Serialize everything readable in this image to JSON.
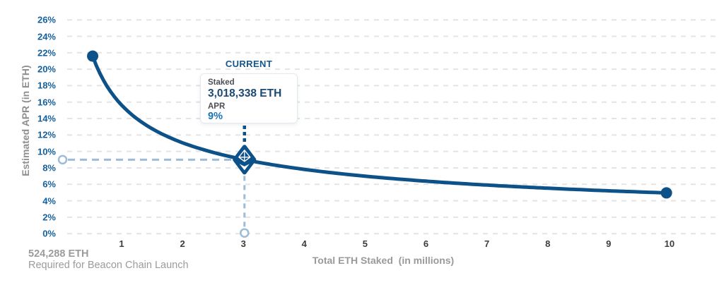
{
  "colors": {
    "curve": "#0d5189",
    "y_tick_label": "#15609c",
    "x_tick_label": "#3c3c3c",
    "axis_title_gray": "#8f8f8f",
    "guide_light_blue": "#9cbcd8",
    "tooltip_value_navy": "#1b4971",
    "tooltip_apr_blue": "#1673b5",
    "note_gray": "#9b9b9b",
    "gridline": "#e4e4e4"
  },
  "chart_data": {
    "type": "line",
    "xlabel": "Total ETH Staked  (in millions)",
    "ylabel": "Estimated APR (in ETH)",
    "xlim": [
      0,
      10.9
    ],
    "ylim": [
      0,
      26
    ],
    "x_ticks": [
      1,
      2,
      3,
      4,
      5,
      6,
      7,
      8,
      9,
      10
    ],
    "y_tick_step": 2,
    "y_tick_suffix": "%",
    "grid": "horizontal-dashed",
    "legend": "none",
    "series": [
      {
        "name": "Estimated APR curve",
        "relation": "APR% = 15.636 / sqrt(total_eth_staked_millions)",
        "apr_constant": 15.636,
        "x_start": 0.524288,
        "x_end": 9.95,
        "points": [
          {
            "x": 0.524288,
            "y": 21.6
          },
          {
            "x": 3.018338,
            "y": 9.0
          },
          {
            "x": 9.95,
            "y": 4.96
          }
        ]
      }
    ],
    "annotations": {
      "current_label": "CURRENT",
      "current_point": {
        "x": 3.018338,
        "y": 9
      },
      "tooltip": {
        "staked_label": "Staked",
        "staked_value": "3,018,338 ETH",
        "apr_label": "APR",
        "apr_value": "9%"
      },
      "launch_note_line1": "524,288 ETH",
      "launch_note_line2": "Required for Beacon Chain Launch"
    }
  }
}
